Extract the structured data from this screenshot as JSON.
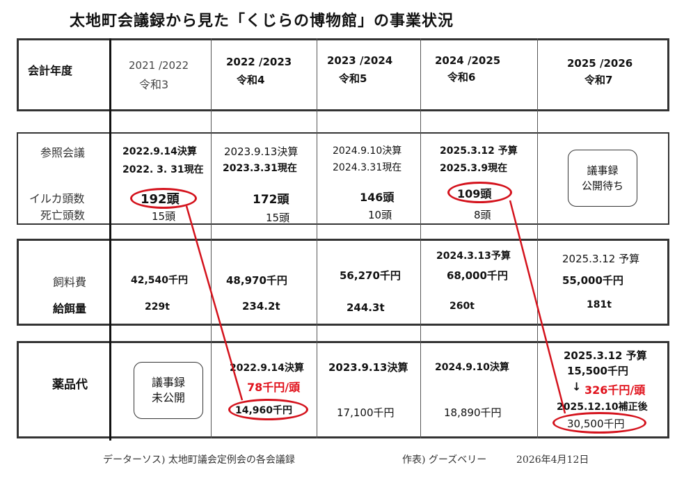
{
  "title": "太地町会議録から見た「くじらの博物館」の事業状況",
  "header": {
    "label": "会計年度",
    "years": [
      {
        "period": "2021 /2022",
        "era": "令和3"
      },
      {
        "period": "2022 /2023",
        "era": "令和4"
      },
      {
        "period": "2023 /2024",
        "era": "令和5"
      },
      {
        "period": "2024 /2025",
        "era": "令和6"
      },
      {
        "period": "2025 /2026",
        "era": "令和7"
      }
    ]
  },
  "dolphins": {
    "labels": {
      "meeting": "参照会議",
      "count": "イルカ頭数",
      "deaths": "死亡頭数"
    },
    "cols": [
      {
        "meeting": "2022.9.14決算",
        "as_of": "2022. 3. 31現在",
        "count": "192頭",
        "deaths": "15頭"
      },
      {
        "meeting": "2023.9.13決算",
        "as_of": "2023.3.31現在",
        "count": "172頭",
        "deaths": "15頭"
      },
      {
        "meeting": "2024.9.10決算",
        "as_of": "2024.3.31現在",
        "count": "146頭",
        "deaths": "10頭"
      },
      {
        "meeting": "2025.3.12 予算",
        "as_of": "2025.3.9現在",
        "count": "109頭",
        "deaths": "8頭"
      }
    ],
    "pending": [
      "議事録",
      "公開待ち"
    ]
  },
  "feed": {
    "labels": {
      "cost": "飼料費",
      "amount": "給餌量"
    },
    "cols": [
      {
        "note": "",
        "cost": "42,540千円",
        "amount": "229t"
      },
      {
        "note": "",
        "cost": "48,970千円",
        "amount": "234.2t"
      },
      {
        "note": "",
        "cost": "56,270千円",
        "amount": "244.3t"
      },
      {
        "note": "2024.3.13予算",
        "cost": "68,000千円",
        "amount": "260t"
      },
      {
        "note": "2025.3.12 予算",
        "cost": "55,000千円",
        "amount": "181t"
      }
    ]
  },
  "medicine": {
    "label": "薬品代",
    "unpublished": [
      "議事録",
      "未公開"
    ],
    "col2": {
      "meeting": "2022.9.14決算",
      "per_head": "78千円/頭",
      "cost": "14,960千円"
    },
    "col3": {
      "meeting": "2023.9.13決算",
      "cost": "17,100千円"
    },
    "col4": {
      "meeting": "2024.9.10決算",
      "cost": "18,890千円"
    },
    "col5": {
      "meeting": "2025.3.12  予算",
      "budget": "15,500千円",
      "arrow": "↓",
      "per_head": "326千円/頭",
      "revised": "2025.12.10補正後",
      "cost": "30,500千円"
    }
  },
  "footer": {
    "source": "データーソス) 太地町議会定例会の各会議録",
    "author": "作表) グーズベリー",
    "date": "2026年4月12日"
  },
  "colors": {
    "highlight": "#d4121c",
    "accent_text": "#e0101a"
  }
}
